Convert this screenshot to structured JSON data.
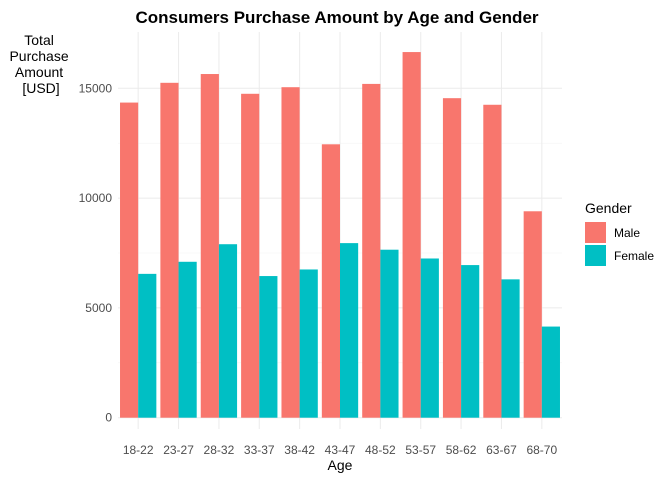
{
  "chart_data": {
    "type": "bar",
    "title": "Consumers Purchase Amount by Age and Gender",
    "xlabel": "Age",
    "ylabel_lines": [
      "Total",
      "Purchase",
      "Amount",
      "[USD]"
    ],
    "categories": [
      "18-22",
      "23-27",
      "28-32",
      "33-37",
      "38-42",
      "43-47",
      "48-52",
      "53-57",
      "58-62",
      "63-67",
      "68-70"
    ],
    "series": [
      {
        "name": "Male",
        "color": "#F8766D",
        "values": [
          14350,
          15250,
          15650,
          14750,
          15050,
          12450,
          15200,
          16650,
          14550,
          14250,
          9400
        ]
      },
      {
        "name": "Female",
        "color": "#00BFC4",
        "values": [
          6550,
          7100,
          7900,
          6450,
          6750,
          7950,
          7650,
          7250,
          6950,
          6300,
          4150
        ]
      }
    ],
    "yticks": [
      0,
      5000,
      10000,
      15000
    ],
    "ylim": [
      0,
      17500
    ],
    "legend": {
      "title": "Gender",
      "placement": "right"
    },
    "grid": true
  }
}
